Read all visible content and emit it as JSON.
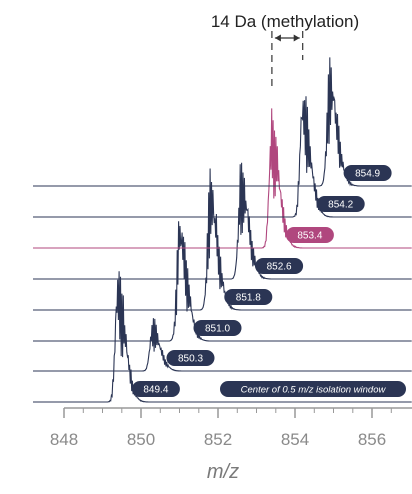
{
  "chart_data": {
    "type": "line",
    "subtype": "stacked mass spectra (waterfall)",
    "xlabel": "m/z",
    "ylabel": "",
    "xlim": [
      848,
      856.7
    ],
    "x_ticks": [
      848,
      850,
      852,
      854,
      856
    ],
    "x_tick_labels": [
      "848",
      "850",
      "852",
      "854",
      "856"
    ],
    "grid": false,
    "annotation": "14 Da (methylation)",
    "annotation_span": [
      853.4,
      854.2
    ],
    "isolation_window_label": "Center of 0.5 m/z isolation window",
    "series": [
      {
        "name": "849.4",
        "center": 849.4,
        "peak_mz": 849.4,
        "highlight": false
      },
      {
        "name": "850.3",
        "center": 850.3,
        "peak_mz": 850.3,
        "highlight": false
      },
      {
        "name": "851.0",
        "center": 851.0,
        "peak_mz": 851.0,
        "highlight": false
      },
      {
        "name": "851.8",
        "center": 851.8,
        "peak_mz": 851.8,
        "highlight": false
      },
      {
        "name": "852.6",
        "center": 852.6,
        "peak_mz": 852.6,
        "highlight": false
      },
      {
        "name": "853.4",
        "center": 853.4,
        "peak_mz": 853.4,
        "highlight": true
      },
      {
        "name": "854.2",
        "center": 854.2,
        "peak_mz": 854.2,
        "highlight": false
      },
      {
        "name": "854.9",
        "center": 854.9,
        "peak_mz": 854.9,
        "highlight": false
      }
    ],
    "colors": {
      "spectrum": "#2b3554",
      "highlight": "#b0477e",
      "label_bg": "#2b3554",
      "highlight_bg": "#b0477e",
      "axis": "#999999"
    }
  }
}
